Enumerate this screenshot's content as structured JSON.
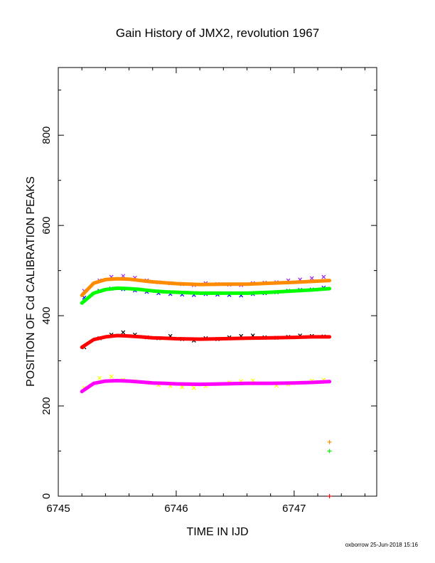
{
  "chart_data": {
    "type": "scatter",
    "title": "Gain History of JMX2, revolution 1967",
    "xlabel": "TIME IN IJD",
    "ylabel": "POSITION OF Cd CALIBRATION PEAKS",
    "xlim": [
      6745.0,
      6747.7
    ],
    "ylim": [
      0,
      950
    ],
    "xticks": [
      {
        "value": 6745,
        "label": "6745"
      },
      {
        "value": 6746,
        "label": "6746"
      },
      {
        "value": 6747,
        "label": "6747"
      }
    ],
    "yticks": [
      {
        "value": 0,
        "label": "0"
      },
      {
        "value": 200,
        "label": "200"
      },
      {
        "value": 400,
        "label": "400"
      },
      {
        "value": 600,
        "label": "600"
      },
      {
        "value": 800,
        "label": "800"
      }
    ],
    "grid": false,
    "legend": "none",
    "series": [
      {
        "kind": "scatter",
        "color": "#a020f0",
        "x": [
          6745.22,
          6745.35,
          6745.45,
          6745.55,
          6745.65,
          6745.75,
          6745.85,
          6745.95,
          6746.05,
          6746.15,
          6746.25,
          6746.35,
          6746.45,
          6746.55,
          6746.65,
          6746.75,
          6746.85,
          6746.95,
          6747.05,
          6747.15,
          6747.25
        ],
        "y": [
          455,
          478,
          486,
          488,
          484,
          478,
          474,
          472,
          470,
          468,
          472,
          470,
          469,
          468,
          472,
          473,
          474,
          478,
          480,
          483,
          486
        ]
      },
      {
        "kind": "scatter",
        "color": "#0000ff",
        "x": [
          6745.22,
          6745.35,
          6745.45,
          6745.55,
          6745.65,
          6745.75,
          6745.85,
          6745.95,
          6746.05,
          6746.15,
          6746.25,
          6746.35,
          6746.45,
          6746.55,
          6746.65,
          6746.75,
          6746.85,
          6746.95,
          6747.05,
          6747.15,
          6747.25
        ],
        "y": [
          440,
          455,
          460,
          459,
          456,
          453,
          450,
          448,
          447,
          446,
          448,
          447,
          446,
          445,
          448,
          450,
          452,
          455,
          457,
          458,
          462
        ]
      },
      {
        "kind": "scatter",
        "color": "#000000",
        "x": [
          6745.22,
          6745.35,
          6745.45,
          6745.55,
          6745.65,
          6745.75,
          6745.85,
          6745.95,
          6746.05,
          6746.15,
          6746.25,
          6746.35,
          6746.45,
          6746.55,
          6746.65,
          6746.75,
          6746.85,
          6746.95,
          6747.05,
          6747.15,
          6747.25
        ],
        "y": [
          330,
          350,
          358,
          363,
          358,
          352,
          350,
          355,
          348,
          345,
          350,
          348,
          352,
          355,
          356,
          352,
          351,
          353,
          356,
          355,
          354
        ]
      },
      {
        "kind": "scatter",
        "color": "#ffff00",
        "x": [
          6745.22,
          6745.35,
          6745.45,
          6745.55,
          6745.65,
          6745.75,
          6745.85,
          6745.95,
          6746.05,
          6746.15,
          6746.25,
          6746.35,
          6746.45,
          6746.55,
          6746.65,
          6746.75,
          6746.85,
          6746.95,
          6747.05,
          6747.15,
          6747.25
        ],
        "y": [
          240,
          262,
          265,
          258,
          255,
          252,
          246,
          244,
          242,
          240,
          244,
          248,
          252,
          255,
          256,
          250,
          245,
          248,
          252,
          256,
          258
        ]
      },
      {
        "kind": "line",
        "color": "#ff8c00",
        "x": [
          6745.2,
          6745.3,
          6745.4,
          6745.5,
          6745.6,
          6745.7,
          6745.8,
          6745.9,
          6746.0,
          6746.2,
          6746.4,
          6746.6,
          6746.8,
          6747.0,
          6747.15,
          6747.3
        ],
        "y": [
          445,
          472,
          480,
          482,
          481,
          478,
          475,
          473,
          471,
          469,
          470,
          470,
          472,
          474,
          476,
          478
        ]
      },
      {
        "kind": "line",
        "color": "#00ff00",
        "x": [
          6745.2,
          6745.3,
          6745.4,
          6745.5,
          6745.6,
          6745.7,
          6745.8,
          6745.9,
          6746.0,
          6746.2,
          6746.4,
          6746.6,
          6746.8,
          6747.0,
          6747.15,
          6747.3
        ],
        "y": [
          428,
          450,
          458,
          461,
          460,
          458,
          455,
          453,
          452,
          450,
          450,
          450,
          452,
          455,
          457,
          460
        ]
      },
      {
        "kind": "line",
        "color": "#ff0000",
        "x": [
          6745.2,
          6745.3,
          6745.4,
          6745.5,
          6745.6,
          6745.7,
          6745.8,
          6745.9,
          6746.0,
          6746.2,
          6746.4,
          6746.6,
          6746.8,
          6747.0,
          6747.15,
          6747.3
        ],
        "y": [
          330,
          347,
          353,
          356,
          355,
          353,
          351,
          350,
          349,
          348,
          349,
          350,
          351,
          352,
          353,
          353
        ]
      },
      {
        "kind": "line",
        "color": "#ff00ff",
        "x": [
          6745.2,
          6745.3,
          6745.4,
          6745.5,
          6745.6,
          6745.7,
          6745.8,
          6745.9,
          6746.0,
          6746.2,
          6746.4,
          6746.6,
          6746.8,
          6747.0,
          6747.15,
          6747.3
        ],
        "y": [
          232,
          250,
          255,
          256,
          255,
          253,
          251,
          250,
          249,
          248,
          249,
          250,
          250,
          251,
          252,
          254
        ]
      },
      {
        "kind": "marker",
        "color": "#ff8c00",
        "x": [
          6747.3
        ],
        "y": [
          120
        ]
      },
      {
        "kind": "marker",
        "color": "#00ff00",
        "x": [
          6747.3
        ],
        "y": [
          100
        ]
      },
      {
        "kind": "marker",
        "color": "#ff0000",
        "x": [
          6747.3
        ],
        "y": [
          0
        ]
      }
    ]
  },
  "footer": {
    "credit": "oxborrow 25-Jun-2018 15:16"
  }
}
